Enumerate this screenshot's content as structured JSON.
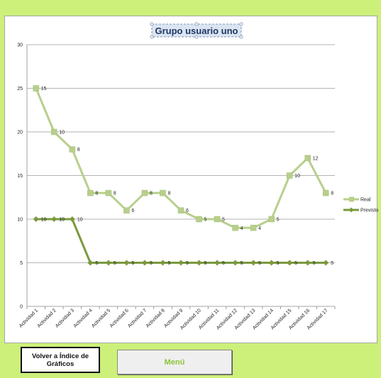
{
  "chart_data": {
    "type": "line",
    "title": "Grupo usuario uno",
    "categories": [
      "Actividad 1",
      "Actividad 2",
      "Actividad 3",
      "Actividad 4",
      "Actividad 5",
      "Actividad 6",
      "Actividad 7",
      "Actividad 8",
      "Actividad 9",
      "Actividad 10",
      "Actividad 11",
      "Actividad 12",
      "Actividad 13",
      "Actividad 14",
      "Actividad 15",
      "Actividad 16",
      "Actividad 17"
    ],
    "series": [
      {
        "name": "Real",
        "color": "#b8cf8c",
        "marker": "square",
        "values": [
          25,
          20,
          18,
          13,
          13,
          11,
          13,
          13,
          11,
          10,
          10,
          9,
          9,
          10,
          15,
          17,
          13
        ],
        "labels": [
          15,
          10,
          8,
          8,
          8,
          6,
          8,
          8,
          6,
          5,
          5,
          4,
          4,
          5,
          10,
          12,
          8
        ]
      },
      {
        "name": "Previsto",
        "color": "#7a9a3e",
        "marker": "diamond",
        "values": [
          10,
          10,
          10,
          5,
          5,
          5,
          5,
          5,
          5,
          5,
          5,
          5,
          5,
          5,
          5,
          5,
          5
        ],
        "labels": [
          10,
          10,
          10,
          5,
          5,
          5,
          5,
          5,
          5,
          5,
          5,
          5,
          5,
          5,
          5,
          5,
          5
        ]
      }
    ],
    "yticks": [
      0,
      5,
      10,
      15,
      20,
      25,
      30
    ],
    "ylim": [
      0,
      30
    ],
    "grid": true,
    "legend": "right"
  },
  "buttons": {
    "index_label": "Volver a Índice de Gráficos",
    "menu_label": "Menú"
  }
}
